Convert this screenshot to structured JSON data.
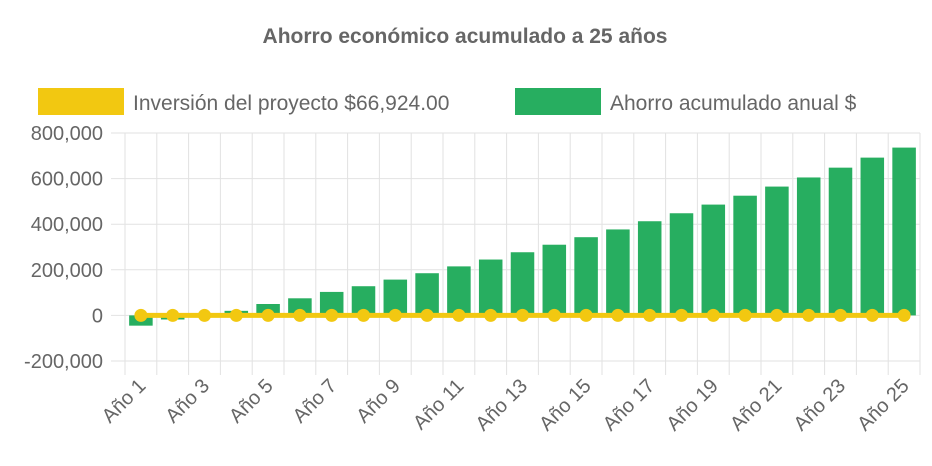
{
  "chart_data": {
    "type": "bar",
    "title": "Ahorro económico acumulado a 25 años",
    "categories": [
      "Año 1",
      "Año 2",
      "Año 3",
      "Año 4",
      "Año 5",
      "Año 6",
      "Año 7",
      "Año 8",
      "Año 9",
      "Año 10",
      "Año 11",
      "Año 12",
      "Año 13",
      "Año 14",
      "Año 15",
      "Año 16",
      "Año 17",
      "Año 18",
      "Año 19",
      "Año 20",
      "Año 21",
      "Año 22",
      "Año 23",
      "Año 24",
      "Año 25"
    ],
    "visible_tick_labels": [
      "Año 1",
      "Año 3",
      "Año 5",
      "Año 7",
      "Año 9",
      "Año 11",
      "Año 13",
      "Año 15",
      "Año 17",
      "Año 19",
      "Año 21",
      "Año 23",
      "Año 25"
    ],
    "series": [
      {
        "name": "Inversión del proyecto $66,924.00",
        "type": "line",
        "color": "#f2c811",
        "values": [
          0,
          0,
          0,
          0,
          0,
          0,
          0,
          0,
          0,
          0,
          0,
          0,
          0,
          0,
          0,
          0,
          0,
          0,
          0,
          0,
          0,
          0,
          0,
          0,
          0
        ]
      },
      {
        "name": "Ahorro acumulado anual $",
        "type": "bar",
        "color": "#27ae60",
        "values": [
          -45000,
          -18000,
          0,
          20000,
          50000,
          75000,
          103000,
          128000,
          157000,
          185000,
          215000,
          245000,
          277000,
          310000,
          343000,
          377000,
          413000,
          448000,
          486000,
          525000,
          565000,
          605000,
          648000,
          692000,
          736000
        ]
      }
    ],
    "ylim": [
      -200000,
      800000
    ],
    "yticks": [
      "800,000",
      "600,000",
      "400,000",
      "200,000",
      "0",
      "-200,000"
    ],
    "ytick_values": [
      800000,
      600000,
      400000,
      200000,
      0,
      -200000
    ],
    "grid": true,
    "legend_position": "top"
  }
}
